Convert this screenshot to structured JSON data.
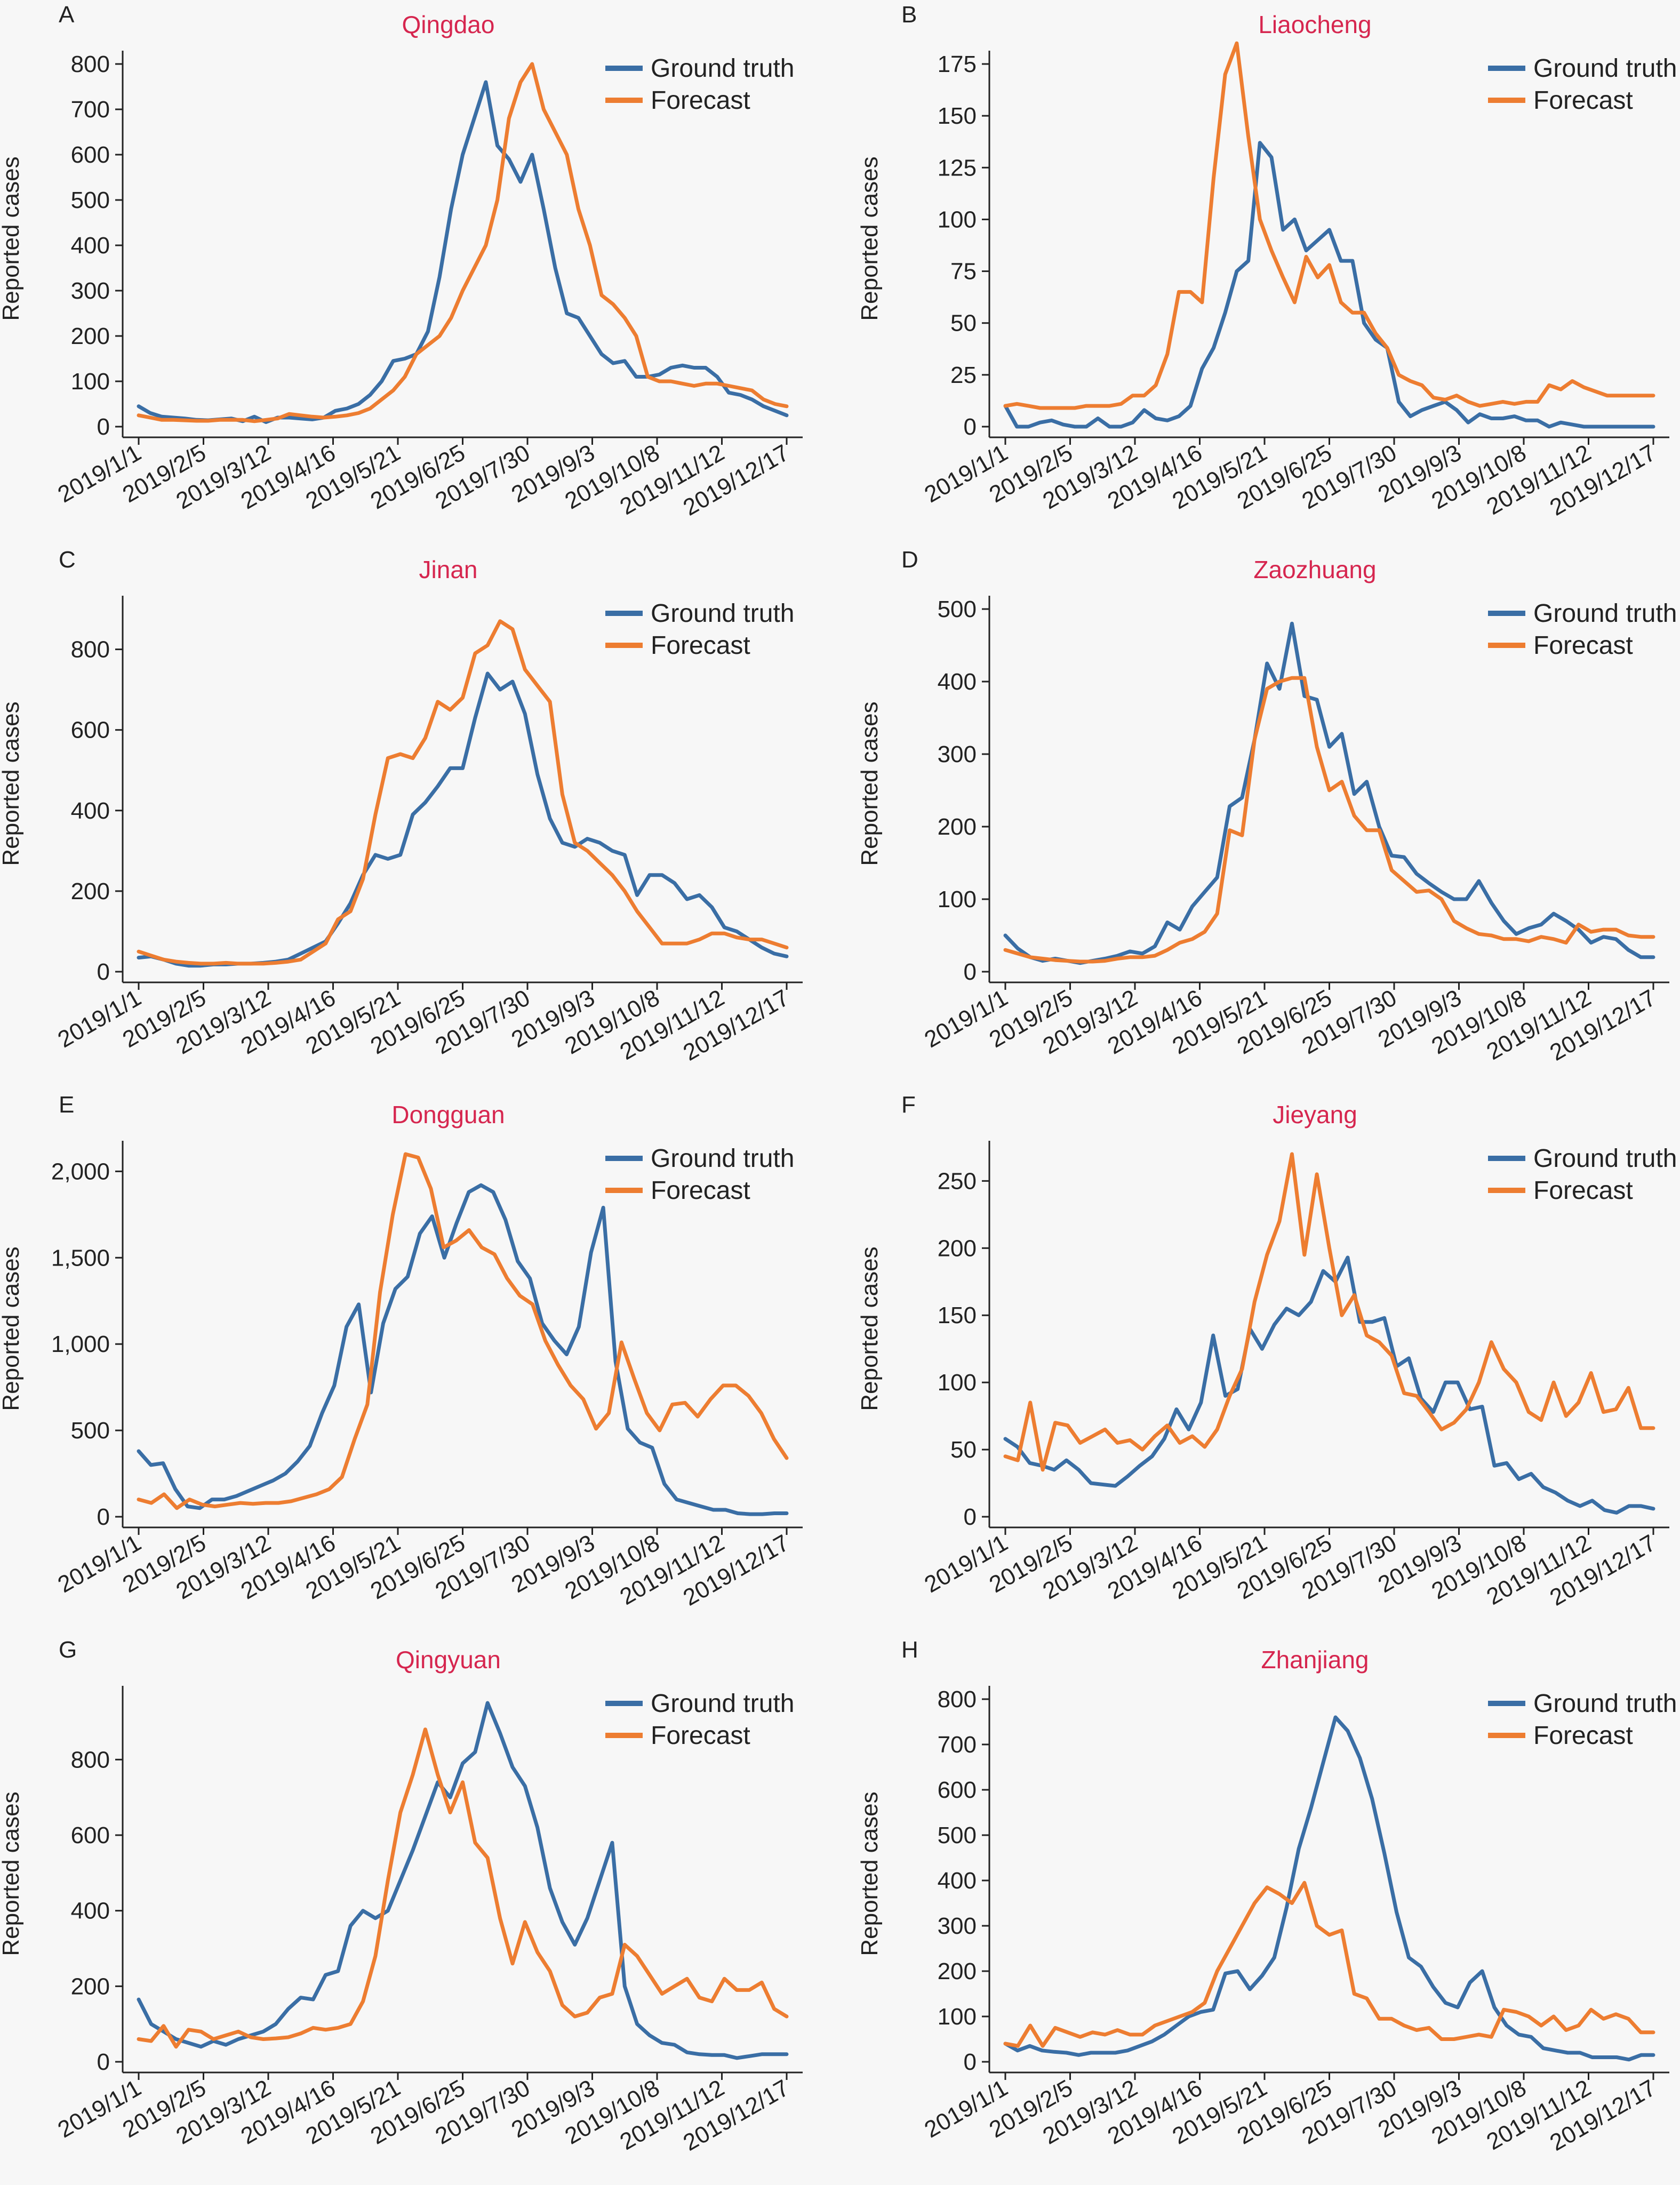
{
  "figure": {
    "x_tick_labels": [
      "2019/1/1",
      "2019/2/5",
      "2019/3/12",
      "2019/4/16",
      "2019/5/21",
      "2019/6/25",
      "2019/7/30",
      "2019/9/3",
      "2019/10/8",
      "2019/11/12",
      "2019/12/17"
    ],
    "ylabel": "Reported cases",
    "legend": [
      "Ground truth",
      "Forecast"
    ],
    "colors": {
      "ground_truth": "#3a6ea5",
      "forecast": "#ed7d31",
      "title": "#d6264f",
      "axis": "#222222",
      "background": "#f7f7f7"
    }
  },
  "chart_data": [
    {
      "letter": "A",
      "title": "Qingdao",
      "type": "line",
      "ylim": [
        0,
        800
      ],
      "yticks": [
        0,
        100,
        200,
        300,
        400,
        500,
        600,
        700,
        800
      ],
      "series": [
        {
          "name": "Ground truth",
          "values": [
            45,
            30,
            22,
            20,
            18,
            15,
            14,
            16,
            18,
            12,
            22,
            10,
            20,
            20,
            18,
            16,
            20,
            35,
            40,
            50,
            70,
            100,
            145,
            150,
            160,
            210,
            330,
            480,
            600,
            680,
            760,
            620,
            590,
            540,
            600,
            480,
            350,
            250,
            240,
            200,
            160,
            140,
            145,
            110,
            110,
            115,
            130,
            135,
            130,
            130,
            110,
            75,
            70,
            60,
            45,
            35,
            25
          ]
        },
        {
          "name": "Forecast",
          "values": [
            25,
            20,
            15,
            15,
            14,
            13,
            13,
            15,
            15,
            15,
            12,
            15,
            18,
            28,
            25,
            22,
            20,
            22,
            25,
            30,
            40,
            60,
            80,
            110,
            160,
            180,
            200,
            240,
            300,
            350,
            400,
            500,
            680,
            760,
            800,
            700,
            650,
            600,
            480,
            400,
            290,
            270,
            240,
            200,
            110,
            100,
            100,
            95,
            90,
            95,
            95,
            90,
            85,
            80,
            60,
            50,
            45
          ]
        }
      ]
    },
    {
      "letter": "B",
      "title": "Liaocheng",
      "type": "line",
      "ylim": [
        0,
        175
      ],
      "yticks": [
        0,
        25,
        50,
        75,
        100,
        125,
        150,
        175
      ],
      "series": [
        {
          "name": "Ground truth",
          "values": [
            10,
            0,
            0,
            2,
            3,
            1,
            0,
            0,
            4,
            0,
            0,
            2,
            8,
            4,
            3,
            5,
            10,
            28,
            38,
            55,
            75,
            80,
            137,
            130,
            95,
            100,
            85,
            90,
            95,
            80,
            80,
            50,
            42,
            38,
            12,
            5,
            8,
            10,
            12,
            8,
            2,
            6,
            4,
            4,
            5,
            3,
            3,
            0,
            2,
            1,
            0,
            0,
            0,
            0,
            0,
            0,
            0
          ]
        },
        {
          "name": "Forecast",
          "values": [
            10,
            11,
            10,
            9,
            9,
            9,
            9,
            10,
            10,
            10,
            11,
            15,
            15,
            20,
            35,
            65,
            65,
            60,
            120,
            170,
            185,
            140,
            100,
            85,
            72,
            60,
            82,
            72,
            78,
            60,
            55,
            55,
            45,
            38,
            25,
            22,
            20,
            14,
            13,
            15,
            12,
            10,
            11,
            12,
            11,
            12,
            12,
            20,
            18,
            22,
            19,
            17,
            15,
            15,
            15,
            15,
            15
          ]
        }
      ]
    },
    {
      "letter": "C",
      "title": "Jinan",
      "type": "line",
      "ylim": [
        0,
        900
      ],
      "yticks": [
        0,
        200,
        400,
        600,
        800
      ],
      "series": [
        {
          "name": "Ground truth",
          "values": [
            35,
            38,
            30,
            20,
            15,
            15,
            18,
            18,
            20,
            20,
            22,
            25,
            30,
            45,
            60,
            75,
            120,
            170,
            240,
            290,
            280,
            290,
            390,
            420,
            460,
            505,
            505,
            630,
            740,
            700,
            720,
            640,
            490,
            380,
            320,
            310,
            330,
            320,
            300,
            290,
            190,
            240,
            240,
            220,
            180,
            190,
            160,
            110,
            100,
            80,
            60,
            45,
            38
          ]
        },
        {
          "name": "Forecast",
          "values": [
            50,
            40,
            30,
            25,
            22,
            20,
            20,
            22,
            20,
            20,
            20,
            22,
            25,
            30,
            50,
            70,
            130,
            150,
            230,
            390,
            530,
            540,
            530,
            580,
            670,
            650,
            680,
            790,
            810,
            870,
            850,
            750,
            710,
            670,
            440,
            320,
            300,
            270,
            240,
            200,
            150,
            110,
            70,
            70,
            70,
            80,
            95,
            95,
            85,
            80,
            80,
            70,
            60
          ]
        }
      ]
    },
    {
      "letter": "D",
      "title": "Zaozhuang",
      "type": "line",
      "ylim": [
        0,
        500
      ],
      "yticks": [
        0,
        100,
        200,
        300,
        400,
        500
      ],
      "series": [
        {
          "name": "Ground truth",
          "values": [
            50,
            32,
            20,
            15,
            18,
            15,
            12,
            15,
            18,
            22,
            28,
            25,
            35,
            68,
            58,
            90,
            110,
            130,
            228,
            240,
            320,
            425,
            390,
            480,
            380,
            375,
            310,
            328,
            245,
            262,
            200,
            160,
            158,
            135,
            122,
            110,
            100,
            100,
            125,
            95,
            70,
            52,
            60,
            65,
            80,
            70,
            58,
            40,
            48,
            45,
            30,
            20,
            20
          ]
        },
        {
          "name": "Forecast",
          "values": [
            30,
            25,
            20,
            18,
            16,
            15,
            14,
            14,
            15,
            18,
            20,
            20,
            22,
            30,
            40,
            45,
            55,
            80,
            195,
            188,
            320,
            390,
            400,
            405,
            405,
            310,
            250,
            262,
            215,
            195,
            195,
            140,
            125,
            110,
            112,
            100,
            70,
            60,
            52,
            50,
            45,
            45,
            42,
            48,
            45,
            40,
            65,
            55,
            58,
            58,
            50,
            48,
            48
          ]
        }
      ]
    },
    {
      "letter": "E",
      "title": "Dongguan",
      "type": "line",
      "ylim": [
        0,
        2100
      ],
      "yticks": [
        0,
        500,
        1000,
        1500,
        2000
      ],
      "series": [
        {
          "name": "Ground truth",
          "values": [
            380,
            300,
            310,
            160,
            60,
            50,
            100,
            100,
            120,
            150,
            180,
            210,
            250,
            320,
            410,
            600,
            760,
            1100,
            1230,
            720,
            1120,
            1320,
            1390,
            1640,
            1740,
            1500,
            1700,
            1880,
            1920,
            1880,
            1720,
            1480,
            1380,
            1120,
            1020,
            940,
            1100,
            1530,
            1790,
            900,
            510,
            430,
            400,
            190,
            100,
            80,
            60,
            40,
            40,
            20,
            15,
            15,
            20,
            20
          ]
        },
        {
          "name": "Forecast",
          "values": [
            100,
            80,
            130,
            50,
            100,
            70,
            60,
            70,
            80,
            75,
            80,
            80,
            90,
            110,
            130,
            160,
            230,
            450,
            650,
            1300,
            1750,
            2100,
            2080,
            1900,
            1560,
            1600,
            1660,
            1560,
            1520,
            1380,
            1280,
            1230,
            1020,
            880,
            760,
            680,
            510,
            600,
            1010,
            800,
            600,
            500,
            650,
            660,
            580,
            680,
            760,
            760,
            700,
            600,
            450,
            340
          ]
        }
      ]
    },
    {
      "letter": "F",
      "title": "Jieyang",
      "type": "line",
      "ylim": [
        0,
        270
      ],
      "yticks": [
        0,
        50,
        100,
        150,
        200,
        250
      ],
      "series": [
        {
          "name": "Ground truth",
          "values": [
            58,
            52,
            40,
            38,
            35,
            42,
            35,
            25,
            24,
            23,
            30,
            38,
            45,
            58,
            80,
            65,
            85,
            135,
            90,
            95,
            140,
            125,
            143,
            155,
            150,
            160,
            183,
            175,
            193,
            145,
            145,
            148,
            112,
            118,
            88,
            78,
            100,
            100,
            80,
            82,
            38,
            40,
            28,
            32,
            22,
            18,
            12,
            8,
            12,
            5,
            3,
            8,
            8,
            6
          ]
        },
        {
          "name": "Forecast",
          "values": [
            45,
            42,
            85,
            35,
            70,
            68,
            55,
            60,
            65,
            55,
            57,
            50,
            60,
            68,
            55,
            60,
            52,
            65,
            90,
            110,
            160,
            195,
            220,
            270,
            195,
            255,
            200,
            150,
            165,
            135,
            130,
            120,
            92,
            90,
            78,
            65,
            70,
            80,
            100,
            130,
            110,
            100,
            78,
            72,
            100,
            75,
            85,
            107,
            78,
            80,
            96,
            66,
            66
          ]
        }
      ]
    },
    {
      "letter": "G",
      "title": "Qingyuan",
      "type": "line",
      "ylim": [
        0,
        960
      ],
      "yticks": [
        0,
        200,
        400,
        600,
        800
      ],
      "series": [
        {
          "name": "Ground truth",
          "values": [
            165,
            100,
            80,
            60,
            50,
            40,
            55,
            45,
            60,
            70,
            80,
            100,
            140,
            170,
            165,
            230,
            240,
            360,
            400,
            380,
            400,
            480,
            560,
            650,
            740,
            700,
            790,
            820,
            950,
            870,
            780,
            730,
            620,
            460,
            370,
            310,
            380,
            480,
            580,
            200,
            100,
            70,
            50,
            45,
            25,
            20,
            18,
            18,
            10,
            15,
            20,
            20,
            20
          ]
        },
        {
          "name": "Forecast",
          "values": [
            60,
            55,
            95,
            40,
            85,
            80,
            60,
            70,
            80,
            65,
            60,
            62,
            65,
            75,
            90,
            85,
            90,
            100,
            160,
            280,
            480,
            660,
            760,
            880,
            760,
            660,
            740,
            580,
            540,
            380,
            260,
            370,
            290,
            240,
            150,
            120,
            130,
            170,
            180,
            310,
            280,
            230,
            180,
            200,
            220,
            170,
            160,
            220,
            190,
            190,
            210,
            140,
            120
          ]
        }
      ]
    },
    {
      "letter": "H",
      "title": "Zhanjiang",
      "type": "line",
      "ylim": [
        0,
        800
      ],
      "yticks": [
        0,
        100,
        200,
        300,
        400,
        500,
        600,
        700,
        800
      ],
      "series": [
        {
          "name": "Ground truth",
          "values": [
            40,
            25,
            35,
            25,
            22,
            20,
            15,
            20,
            20,
            20,
            25,
            35,
            45,
            60,
            80,
            100,
            110,
            115,
            195,
            200,
            160,
            190,
            230,
            340,
            470,
            560,
            660,
            760,
            730,
            670,
            580,
            460,
            330,
            230,
            210,
            165,
            130,
            120,
            175,
            200,
            120,
            80,
            60,
            55,
            30,
            25,
            20,
            20,
            10,
            10,
            10,
            5,
            15,
            15
          ]
        },
        {
          "name": "Forecast",
          "values": [
            40,
            35,
            80,
            35,
            75,
            65,
            55,
            65,
            60,
            70,
            60,
            60,
            80,
            90,
            100,
            110,
            130,
            200,
            250,
            300,
            350,
            385,
            370,
            350,
            395,
            300,
            280,
            290,
            150,
            140,
            95,
            95,
            80,
            70,
            75,
            50,
            50,
            55,
            60,
            55,
            115,
            110,
            100,
            80,
            100,
            70,
            80,
            115,
            95,
            105,
            95,
            65,
            65
          ]
        }
      ]
    }
  ]
}
